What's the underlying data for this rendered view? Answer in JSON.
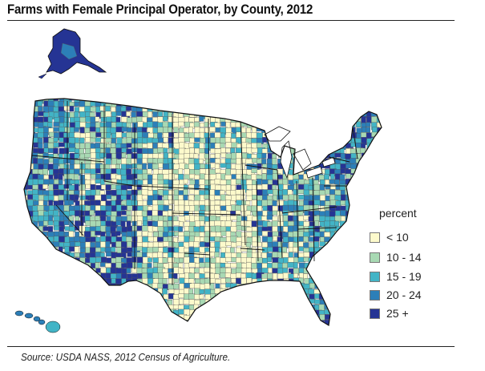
{
  "title": "Farms with Female Principal Operator, by County, 2012",
  "source": "Source: USDA NASS, 2012 Census of Agriculture.",
  "legend": {
    "title": "percent",
    "classes": [
      {
        "label": "< 10",
        "color": "#fdfacc"
      },
      {
        "label": "10 - 14",
        "color": "#a8d9b3"
      },
      {
        "label": "15 - 19",
        "color": "#42b4c6"
      },
      {
        "label": "20 - 24",
        "color": "#2c7fb8"
      },
      {
        "label": "25 +",
        "color": "#253494"
      }
    ]
  },
  "colors": {
    "county_border": "#555555",
    "state_border": "#111111"
  }
}
